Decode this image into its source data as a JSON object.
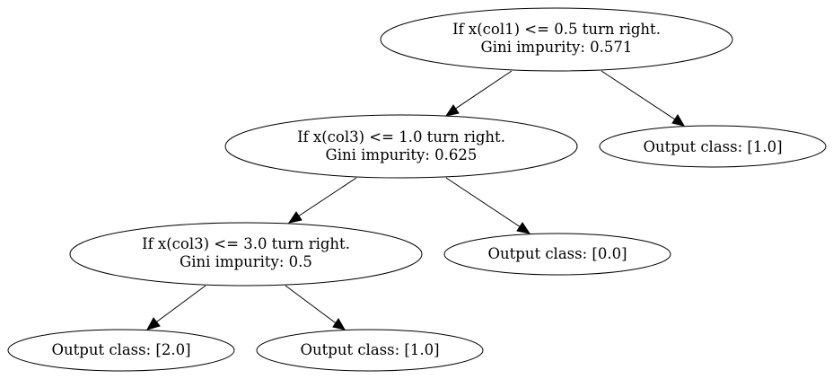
{
  "nodes": {
    "root": {
      "line1": "If x(col1) <= 0.5 turn right.",
      "line2": "Gini impurity: 0.571"
    },
    "left": {
      "line1": "If x(col3) <= 1.0 turn right.",
      "line2": "Gini impurity: 0.625"
    },
    "root_leaf": {
      "line1": "Output class: [1.0]"
    },
    "left_left": {
      "line1": "If x(col3) <= 3.0 turn right.",
      "line2": "Gini impurity: 0.5"
    },
    "left_leaf": {
      "line1": "Output class: [0.0]"
    },
    "leaf_2": {
      "line1": "Output class: [2.0]"
    },
    "leaf_1": {
      "line1": "Output class: [1.0]"
    }
  },
  "colors": {
    "stroke": "#000000",
    "background": "#ffffff"
  }
}
